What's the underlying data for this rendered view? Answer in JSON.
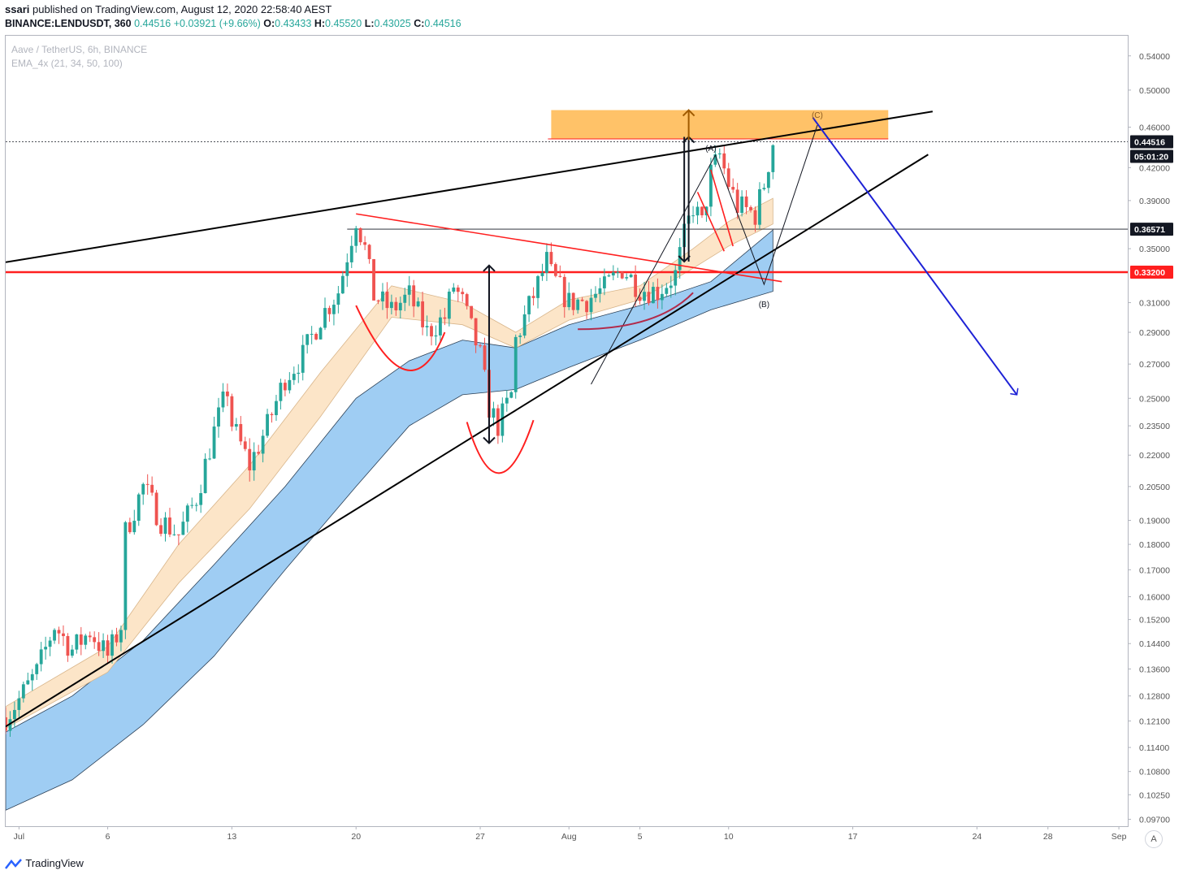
{
  "header": {
    "author": "ssari",
    "published": "published on TradingView.com, August 12, 2020 22:58:40 AEST",
    "symbol_line": "BINANCE:LENDUSDT, 360",
    "last": "0.44516",
    "change": "+0.03921 (+9.66%)",
    "o_label": "O:",
    "o": "0.43433",
    "h_label": "H:",
    "h": "0.45520",
    "l_label": "L:",
    "l": "0.43025",
    "c_label": "C:",
    "c": "0.44516"
  },
  "legend": {
    "pair": "Aave / TetherUS, 6h, BINANCE",
    "indicator": "EMA_4x (21, 34, 50, 100)"
  },
  "footer": {
    "brand": "TradingView"
  },
  "autoscale_label": "A",
  "chart_data": {
    "type": "candlestick",
    "scale": "log",
    "ylim": [
      0.0955,
      0.565
    ],
    "y_ticks": [
      "0.54000",
      "0.50000",
      "0.46000",
      "0.42000",
      "0.39000",
      "0.35000",
      "0.31000",
      "0.29000",
      "0.27000",
      "0.25000",
      "0.23500",
      "0.22000",
      "0.20500",
      "0.19000",
      "0.18000",
      "0.17000",
      "0.16000",
      "0.15200",
      "0.14400",
      "0.13600",
      "0.12800",
      "0.12100",
      "0.11400",
      "0.10800",
      "0.10250",
      "0.09700"
    ],
    "x_ticks": [
      {
        "label": "Jul",
        "date": "2020-07-01"
      },
      {
        "label": "6",
        "date": "2020-07-06"
      },
      {
        "label": "13",
        "date": "2020-07-13"
      },
      {
        "label": "20",
        "date": "2020-07-20"
      },
      {
        "label": "27",
        "date": "2020-07-27"
      },
      {
        "label": "Aug",
        "date": "2020-08-01"
      },
      {
        "label": "5",
        "date": "2020-08-05"
      },
      {
        "label": "10",
        "date": "2020-08-10"
      },
      {
        "label": "17",
        "date": "2020-08-17"
      },
      {
        "label": "24",
        "date": "2020-08-24"
      },
      {
        "label": "28",
        "date": "2020-08-28"
      },
      {
        "label": "Sep",
        "date": "2020-09-01"
      }
    ],
    "xlim": [
      "2020-06-30T06:00",
      "2020-09-01T12:00"
    ],
    "price_labels": [
      {
        "value": 0.44516,
        "text": "0.44516",
        "bg": "#131722"
      },
      {
        "text": "05:01:20",
        "bg": "#131722"
      },
      {
        "value": 0.36571,
        "text": "0.36571",
        "bg": "#131722"
      },
      {
        "value": 0.332,
        "text": "0.33200",
        "bg": "#ff1f1f"
      }
    ],
    "close_path": [
      [
        "2020-06-30T06:00",
        0.122
      ],
      [
        "2020-07-01",
        0.127
      ],
      [
        "2020-07-02",
        0.135
      ],
      [
        "2020-07-03",
        0.15
      ],
      [
        "2020-07-04",
        0.142
      ],
      [
        "2020-07-05",
        0.148
      ],
      [
        "2020-07-06",
        0.14
      ],
      [
        "2020-07-06T18:00",
        0.15
      ],
      [
        "2020-07-07",
        0.185
      ],
      [
        "2020-07-08",
        0.205
      ],
      [
        "2020-07-09",
        0.19
      ],
      [
        "2020-07-10",
        0.184
      ],
      [
        "2020-07-11",
        0.2
      ],
      [
        "2020-07-12",
        0.232
      ],
      [
        "2020-07-12T18:00",
        0.255
      ],
      [
        "2020-07-13",
        0.236
      ],
      [
        "2020-07-14",
        0.215
      ],
      [
        "2020-07-15",
        0.235
      ],
      [
        "2020-07-16",
        0.262
      ],
      [
        "2020-07-17",
        0.275
      ],
      [
        "2020-07-18",
        0.3
      ],
      [
        "2020-07-19",
        0.318
      ],
      [
        "2020-07-19T12:00",
        0.345
      ],
      [
        "2020-07-20",
        0.375
      ],
      [
        "2020-07-20T12:00",
        0.35
      ],
      [
        "2020-07-21",
        0.315
      ],
      [
        "2020-07-22",
        0.305
      ],
      [
        "2020-07-23",
        0.315
      ],
      [
        "2020-07-24",
        0.29
      ],
      [
        "2020-07-25",
        0.3
      ],
      [
        "2020-07-25T12:00",
        0.322
      ],
      [
        "2020-07-26",
        0.31
      ],
      [
        "2020-07-27",
        0.275
      ],
      [
        "2020-07-27T12:00",
        0.245
      ],
      [
        "2020-07-28",
        0.235
      ],
      [
        "2020-07-28T18:00",
        0.252
      ],
      [
        "2020-07-29",
        0.285
      ],
      [
        "2020-07-30",
        0.315
      ],
      [
        "2020-07-30T18:00",
        0.34
      ],
      [
        "2020-07-31",
        0.33
      ],
      [
        "2020-08-01",
        0.31
      ],
      [
        "2020-08-02",
        0.312
      ],
      [
        "2020-08-03",
        0.32
      ],
      [
        "2020-08-04",
        0.335
      ],
      [
        "2020-08-05",
        0.32
      ],
      [
        "2020-08-06",
        0.318
      ],
      [
        "2020-08-07",
        0.33
      ],
      [
        "2020-08-07T12:00",
        0.36
      ],
      [
        "2020-08-08",
        0.385
      ],
      [
        "2020-08-08T12:00",
        0.37
      ],
      [
        "2020-08-09",
        0.415
      ],
      [
        "2020-08-09T12:00",
        0.432
      ],
      [
        "2020-08-10",
        0.405
      ],
      [
        "2020-08-10T12:00",
        0.385
      ],
      [
        "2020-08-11",
        0.382
      ],
      [
        "2020-08-11T12:00",
        0.378
      ],
      [
        "2020-08-12",
        0.405
      ],
      [
        "2020-08-12T12:00",
        0.445
      ]
    ],
    "ema_fast_band": [
      [
        "2020-06-30T06:00",
        0.119,
        0.125
      ],
      [
        "2020-07-06",
        0.135,
        0.143
      ],
      [
        "2020-07-10",
        0.165,
        0.18
      ],
      [
        "2020-07-14",
        0.195,
        0.215
      ],
      [
        "2020-07-18",
        0.24,
        0.265
      ],
      [
        "2020-07-22",
        0.3,
        0.322
      ],
      [
        "2020-07-26",
        0.295,
        0.31
      ],
      [
        "2020-07-29",
        0.28,
        0.29
      ],
      [
        "2020-08-01",
        0.298,
        0.312
      ],
      [
        "2020-08-05",
        0.312,
        0.322
      ],
      [
        "2020-08-08",
        0.335,
        0.35
      ],
      [
        "2020-08-10",
        0.352,
        0.372
      ],
      [
        "2020-08-12T12:00",
        0.37,
        0.392
      ]
    ],
    "ema_slow_band": [
      [
        "2020-06-30T06:00",
        0.099,
        0.118
      ],
      [
        "2020-07-04",
        0.106,
        0.128
      ],
      [
        "2020-07-08",
        0.12,
        0.145
      ],
      [
        "2020-07-12",
        0.14,
        0.172
      ],
      [
        "2020-07-16",
        0.17,
        0.205
      ],
      [
        "2020-07-20",
        0.205,
        0.25
      ],
      [
        "2020-07-23",
        0.235,
        0.272
      ],
      [
        "2020-07-26",
        0.252,
        0.285
      ],
      [
        "2020-07-29",
        0.255,
        0.28
      ],
      [
        "2020-08-01",
        0.268,
        0.295
      ],
      [
        "2020-08-05",
        0.285,
        0.308
      ],
      [
        "2020-08-09",
        0.305,
        0.325
      ],
      [
        "2020-08-12T12:00",
        0.318,
        0.365
      ]
    ],
    "annotations": {
      "labels": [
        {
          "text": "(A)",
          "date": "2020-08-09",
          "value": 0.436
        },
        {
          "text": "(B)",
          "date": "2020-08-12",
          "value": 0.307
        },
        {
          "text": "(C)",
          "date": "2020-08-15",
          "value": 0.47
        }
      ],
      "resistance_zone": {
        "from": "2020-07-31",
        "to": "2020-08-19",
        "low": 0.448,
        "high": 0.478,
        "color": "#ffb74d"
      },
      "colors": {
        "trend": "#000000",
        "support": "#ff1f1f",
        "projection": "#1e22d6",
        "target": "#a05a00",
        "up": "#26a69a",
        "down": "#ef5350"
      }
    }
  }
}
